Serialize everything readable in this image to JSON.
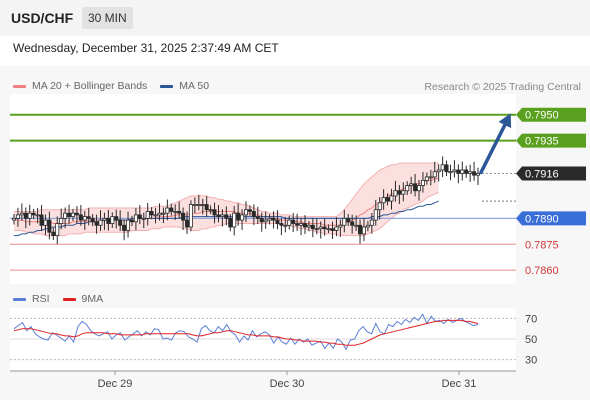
{
  "header": {
    "symbol": "USD/CHF",
    "timeframe": "30 MIN"
  },
  "datetime": "Wednesday, December 31, 2025 2:37:49 AM CET",
  "copyright": "Research © 2025 Trading Central",
  "legend_main": [
    {
      "label": "MA 20 + Bollinger Bands",
      "color": "#f08080"
    },
    {
      "label": "MA 50",
      "color": "#2b5797"
    }
  ],
  "legend_rsi": [
    {
      "label": "RSI",
      "color": "#5b7fd6"
    },
    {
      "label": "9MA",
      "color": "#e02020"
    }
  ],
  "chart_data": {
    "type": "candlestick",
    "symbol": "USD/CHF",
    "timeframe": "30 MIN",
    "x_tick_labels": [
      "Dec 29",
      "Dec 30",
      "Dec 31"
    ],
    "ylim": [
      0.7852,
      0.7962
    ],
    "levels": [
      {
        "value": 0.795,
        "label": "0.7950",
        "kind": "resistance",
        "color": "#5aa01f"
      },
      {
        "value": 0.7935,
        "label": "0.7935",
        "kind": "resistance",
        "color": "#5aa01f"
      },
      {
        "value": 0.7916,
        "label": "0.7916",
        "kind": "last",
        "color": "#2a2a2a"
      },
      {
        "value": 0.789,
        "label": "0.7890",
        "kind": "pivot",
        "color": "#3b6fd8"
      },
      {
        "value": 0.7875,
        "label": "0.7875",
        "kind": "support",
        "color": "#e05050"
      },
      {
        "value": 0.786,
        "label": "0.7860",
        "kind": "support",
        "color": "#e05050"
      }
    ],
    "arrow": {
      "from": 0.7916,
      "to": 0.795,
      "color": "#2b5797"
    },
    "series_close": [
      0.789,
      0.7892,
      0.7893,
      0.789,
      0.7893,
      0.7892,
      0.7892,
      0.7886,
      0.7889,
      0.7882,
      0.788,
      0.7887,
      0.789,
      0.7893,
      0.7891,
      0.7893,
      0.7892,
      0.7889,
      0.7891,
      0.789,
      0.7888,
      0.7886,
      0.7889,
      0.789,
      0.7887,
      0.7891,
      0.7889,
      0.7886,
      0.7883,
      0.7889,
      0.7888,
      0.7892,
      0.789,
      0.789,
      0.7894,
      0.7892,
      0.7892,
      0.7893,
      0.7893,
      0.7896,
      0.7894,
      0.7894,
      0.7893,
      0.7889,
      0.7885,
      0.7898,
      0.7898,
      0.7898,
      0.7898,
      0.7895,
      0.7895,
      0.7892,
      0.7891,
      0.7892,
      0.789,
      0.7885,
      0.7893,
      0.7889,
      0.7892,
      0.7895,
      0.7894,
      0.7891,
      0.789,
      0.7888,
      0.7889,
      0.789,
      0.7889,
      0.7887,
      0.7886,
      0.7886,
      0.7889,
      0.7887,
      0.7886,
      0.7887,
      0.7885,
      0.7886,
      0.7884,
      0.7884,
      0.7885,
      0.7884,
      0.7884,
      0.7883,
      0.7885,
      0.7886,
      0.789,
      0.7888,
      0.7886,
      0.7886,
      0.7881,
      0.7885,
      0.7886,
      0.7889,
      0.7895,
      0.7899,
      0.7902,
      0.79,
      0.7903,
      0.7906,
      0.7904,
      0.7906,
      0.7909,
      0.791,
      0.7906,
      0.7909,
      0.7912,
      0.7914,
      0.7914,
      0.7917,
      0.7918,
      0.7921,
      0.7917,
      0.7917,
      0.7918,
      0.7916,
      0.7918,
      0.7916,
      0.7917,
      0.7915,
      0.7916
    ],
    "ma20": [
      0.7889,
      0.7889,
      0.7889,
      0.7888,
      0.7888,
      0.7888,
      0.7888,
      0.7888,
      0.7888,
      0.7888,
      0.7887,
      0.7887,
      0.7887,
      0.7887,
      0.7887,
      0.7888,
      0.7888,
      0.7888,
      0.7888,
      0.7889,
      0.7889,
      0.7889,
      0.7889,
      0.7889,
      0.7889,
      0.7889,
      0.7889,
      0.7889,
      0.7889,
      0.7889,
      0.789,
      0.789,
      0.789,
      0.789,
      0.789,
      0.789,
      0.789,
      0.7891,
      0.7891,
      0.7891,
      0.7891,
      0.7892,
      0.7892,
      0.7892,
      0.7892,
      0.7893,
      0.7893,
      0.7893,
      0.7894,
      0.7894,
      0.7894,
      0.7894,
      0.7894,
      0.7894,
      0.7894,
      0.7894,
      0.7894,
      0.7893,
      0.7893,
      0.7893,
      0.7893,
      0.7892,
      0.7892,
      0.7891,
      0.7891,
      0.7891,
      0.789,
      0.789,
      0.7889,
      0.7889,
      0.7889,
      0.7888,
      0.7888,
      0.7888,
      0.7887,
      0.7887,
      0.7887,
      0.7887,
      0.7887,
      0.7886,
      0.7886,
      0.7886,
      0.7886,
      0.7886,
      0.7887,
      0.7888,
      0.7889,
      0.789,
      0.7892,
      0.7893,
      0.7895,
      0.7896,
      0.7898,
      0.7899,
      0.7901,
      0.7903,
      0.7904,
      0.7905,
      0.7906,
      0.7907,
      0.7908,
      0.7909,
      0.791,
      0.791,
      0.7911,
      0.7912,
      0.7912,
      0.7913,
      0.7913
    ],
    "bb_upper": [
      0.7894,
      0.7894,
      0.7894,
      0.7894,
      0.7894,
      0.7894,
      0.7894,
      0.7895,
      0.7895,
      0.7895,
      0.7895,
      0.7895,
      0.7895,
      0.7895,
      0.7895,
      0.7895,
      0.7895,
      0.7895,
      0.7895,
      0.7896,
      0.7896,
      0.7896,
      0.7896,
      0.7896,
      0.7896,
      0.7896,
      0.7896,
      0.7896,
      0.7896,
      0.7896,
      0.7896,
      0.7896,
      0.7896,
      0.7896,
      0.7896,
      0.7896,
      0.7897,
      0.7897,
      0.7897,
      0.7897,
      0.7898,
      0.7899,
      0.79,
      0.7901,
      0.7902,
      0.7903,
      0.7903,
      0.7903,
      0.7903,
      0.7903,
      0.7902,
      0.7902,
      0.7901,
      0.7901,
      0.79,
      0.79,
      0.7899,
      0.7899,
      0.7898,
      0.7898,
      0.7897,
      0.7896,
      0.7895,
      0.7894,
      0.7894,
      0.7893,
      0.7893,
      0.7893,
      0.7892,
      0.7892,
      0.7892,
      0.7891,
      0.7891,
      0.7891,
      0.7891,
      0.7891,
      0.7891,
      0.7891,
      0.7891,
      0.7891,
      0.7891,
      0.7891,
      0.7891,
      0.7893,
      0.7895,
      0.7898,
      0.7901,
      0.7904,
      0.7907,
      0.791,
      0.7912,
      0.7914,
      0.7916,
      0.7918,
      0.7919,
      0.792,
      0.7921,
      0.7921,
      0.7922,
      0.7922,
      0.7922,
      0.7922,
      0.7922,
      0.7922,
      0.7922,
      0.7922,
      0.7922,
      0.7922,
      0.7922
    ],
    "bb_lower": [
      0.7883,
      0.7883,
      0.7883,
      0.7882,
      0.7882,
      0.7881,
      0.7881,
      0.7881,
      0.788,
      0.788,
      0.788,
      0.788,
      0.788,
      0.788,
      0.7881,
      0.7881,
      0.7881,
      0.7881,
      0.7882,
      0.7882,
      0.7882,
      0.7882,
      0.7882,
      0.7882,
      0.7882,
      0.7882,
      0.7882,
      0.7882,
      0.7882,
      0.7882,
      0.7883,
      0.7883,
      0.7883,
      0.7883,
      0.7883,
      0.7884,
      0.7884,
      0.7884,
      0.7885,
      0.7885,
      0.7885,
      0.7885,
      0.7885,
      0.7884,
      0.7884,
      0.7883,
      0.7883,
      0.7883,
      0.7884,
      0.7884,
      0.7885,
      0.7885,
      0.7886,
      0.7886,
      0.7887,
      0.7887,
      0.7887,
      0.7887,
      0.7887,
      0.7887,
      0.7887,
      0.7887,
      0.7887,
      0.7887,
      0.7887,
      0.7887,
      0.7887,
      0.7887,
      0.7886,
      0.7886,
      0.7886,
      0.7885,
      0.7885,
      0.7884,
      0.7884,
      0.7883,
      0.7883,
      0.7882,
      0.7882,
      0.7881,
      0.7881,
      0.7881,
      0.7881,
      0.788,
      0.788,
      0.788,
      0.788,
      0.788,
      0.788,
      0.788,
      0.7881,
      0.7882,
      0.7883,
      0.7884,
      0.7886,
      0.7888,
      0.789,
      0.7892,
      0.7893,
      0.7895,
      0.7896,
      0.7897,
      0.7898,
      0.7899,
      0.79,
      0.7902,
      0.7903,
      0.7904,
      0.7905
    ],
    "ma50": [
      0.788,
      0.788,
      0.7881,
      0.7881,
      0.7882,
      0.7882,
      0.7883,
      0.7883,
      0.7884,
      0.7884,
      0.7885,
      0.7885,
      0.7885,
      0.7886,
      0.7886,
      0.7886,
      0.7887,
      0.7887,
      0.7887,
      0.7888,
      0.7888,
      0.7888,
      0.7888,
      0.7889,
      0.7889,
      0.7889,
      0.7889,
      0.7889,
      0.7889,
      0.7889,
      0.789,
      0.789,
      0.789,
      0.789,
      0.789,
      0.789,
      0.789,
      0.789,
      0.789,
      0.789,
      0.789,
      0.789,
      0.789,
      0.7891,
      0.7891,
      0.7891,
      0.7891,
      0.7891,
      0.7891,
      0.7891,
      0.7891,
      0.7891,
      0.7891,
      0.7891,
      0.7891,
      0.7891,
      0.7891,
      0.7891,
      0.7891,
      0.7891,
      0.7891,
      0.7891,
      0.7891,
      0.7891,
      0.7891,
      0.7891,
      0.7891,
      0.7891,
      0.7891,
      0.789,
      0.789,
      0.789,
      0.789,
      0.789,
      0.789,
      0.789,
      0.789,
      0.789,
      0.789,
      0.789,
      0.789,
      0.789,
      0.789,
      0.789,
      0.789,
      0.789,
      0.789,
      0.789,
      0.789,
      0.789,
      0.789,
      0.7891,
      0.7891,
      0.7891,
      0.7892,
      0.7892,
      0.7893,
      0.7893,
      0.7894,
      0.7894,
      0.7895,
      0.7895,
      0.7896,
      0.7897,
      0.7897,
      0.7898,
      0.7898,
      0.7899,
      0.79
    ],
    "rsi": {
      "ylim": [
        20,
        80
      ],
      "ticks": [
        70,
        50,
        30
      ],
      "rsi_values": [
        60,
        63,
        66,
        58,
        62,
        55,
        52,
        50,
        49,
        56,
        54,
        51,
        48,
        53,
        47,
        62,
        67,
        64,
        58,
        55,
        53,
        55,
        57,
        50,
        54,
        56,
        49,
        52,
        55,
        58,
        53,
        57,
        54,
        60,
        59,
        50,
        51,
        49,
        56,
        58,
        57,
        52,
        50,
        47,
        60,
        63,
        58,
        56,
        62,
        58,
        64,
        57,
        54,
        47,
        53,
        49,
        58,
        52,
        55,
        57,
        54,
        46,
        52,
        47,
        45,
        51,
        45,
        50,
        47,
        50,
        44,
        46,
        48,
        41,
        46,
        41,
        50,
        47,
        40,
        49,
        50,
        58,
        62,
        57,
        55,
        65,
        57,
        55,
        64,
        62,
        67,
        64,
        69,
        66,
        71,
        68,
        74,
        65,
        72,
        67,
        68,
        65,
        69,
        66,
        68,
        70,
        67,
        65,
        63,
        64
      ],
      "ma9_values": [
        58,
        59,
        60,
        60,
        60,
        59,
        58,
        57,
        56,
        55,
        55,
        54,
        53,
        53,
        52,
        53,
        55,
        56,
        56,
        56,
        56,
        56,
        55,
        55,
        55,
        54,
        54,
        54,
        54,
        54,
        54,
        55,
        55,
        55,
        55,
        55,
        55,
        55,
        55,
        55,
        55,
        55,
        54,
        53,
        53,
        54,
        55,
        56,
        56,
        57,
        58,
        58,
        57,
        56,
        55,
        54,
        54,
        53,
        53,
        53,
        53,
        52,
        52,
        51,
        50,
        50,
        49,
        49,
        48,
        48,
        48,
        48,
        47,
        47,
        46,
        46,
        45,
        45,
        44,
        44,
        44,
        45,
        46,
        48,
        50,
        52,
        54,
        55,
        56,
        57,
        58,
        59,
        60,
        61,
        62,
        63,
        64,
        65,
        66,
        67,
        67,
        68,
        68,
        68,
        68,
        68,
        67,
        67,
        66,
        65
      ]
    }
  }
}
